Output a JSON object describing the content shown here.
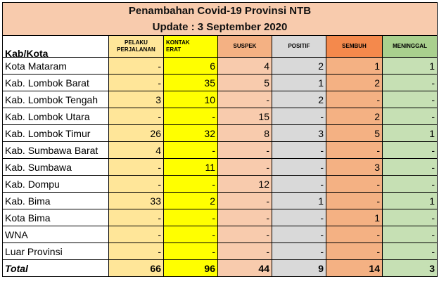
{
  "title_line1": "Penambahan Covid-19 Provinsi NTB",
  "title_line2": "Update : 3  September  2020",
  "headers": {
    "kab": "Kab/Kota",
    "pelaku_line1": "PELAKU",
    "pelaku_line2": "PERJALANAN",
    "kontak_line1": "KONTAK",
    "kontak_line2": "ERAT",
    "suspek": "SUSPEK",
    "positif": "POSITIF",
    "sembuh": "SEMBUH",
    "meninggal": "MENINGGAL"
  },
  "rows": [
    {
      "name": "Kota Mataram",
      "pelaku": "-",
      "kontak": "6",
      "suspek": "4",
      "positif": "2",
      "sembuh": "1",
      "meninggal": "1"
    },
    {
      "name": "Kab. Lombok Barat",
      "pelaku": "-",
      "kontak": "35",
      "suspek": "5",
      "positif": "1",
      "sembuh": "2",
      "meninggal": "-"
    },
    {
      "name": "Kab. Lombok Tengah",
      "pelaku": "3",
      "kontak": "10",
      "suspek": "-",
      "positif": "2",
      "sembuh": "-",
      "meninggal": "-"
    },
    {
      "name": "Kab. Lombok  Utara",
      "pelaku": "-",
      "kontak": "-",
      "suspek": "15",
      "positif": "-",
      "sembuh": "2",
      "meninggal": "-"
    },
    {
      "name": "Kab. Lombok Timur",
      "pelaku": "26",
      "kontak": "32",
      "suspek": "8",
      "positif": "3",
      "sembuh": "5",
      "meninggal": "1"
    },
    {
      "name": "Kab. Sumbawa Barat",
      "pelaku": "4",
      "kontak": "-",
      "suspek": "-",
      "positif": "-",
      "sembuh": "-",
      "meninggal": "-"
    },
    {
      "name": "Kab. Sumbawa",
      "pelaku": "-",
      "kontak": "11",
      "suspek": "-",
      "positif": "-",
      "sembuh": "3",
      "meninggal": "-"
    },
    {
      "name": "Kab. Dompu",
      "pelaku": "-",
      "kontak": "-",
      "suspek": "12",
      "positif": "-",
      "sembuh": "-",
      "meninggal": "-"
    },
    {
      "name": "Kab. Bima",
      "pelaku": "33",
      "kontak": "2",
      "suspek": "-",
      "positif": "1",
      "sembuh": "-",
      "meninggal": "1"
    },
    {
      "name": "Kota Bima",
      "pelaku": "-",
      "kontak": "-",
      "suspek": "-",
      "positif": "-",
      "sembuh": "1",
      "meninggal": "-"
    },
    {
      "name": "WNA",
      "pelaku": "-",
      "kontak": "-",
      "suspek": "-",
      "positif": "-",
      "sembuh": "-",
      "meninggal": "-"
    },
    {
      "name": "Luar Provinsi",
      "pelaku": "-",
      "kontak": "-",
      "suspek": "-",
      "positif": "-",
      "sembuh": "-",
      "meninggal": "-"
    }
  ],
  "total": {
    "name": "Total",
    "pelaku": "66",
    "kontak": "96",
    "suspek": "44",
    "positif": "9",
    "sembuh": "14",
    "meninggal": "3"
  },
  "colors": {
    "title_bg": "#f8cbad",
    "pelaku": "#ffe699",
    "kontak": "#ffff00",
    "suspek": "#f8cbad",
    "positif": "#d9d9d9",
    "sembuh": "#f4b183",
    "meninggal": "#c6e0b4"
  }
}
